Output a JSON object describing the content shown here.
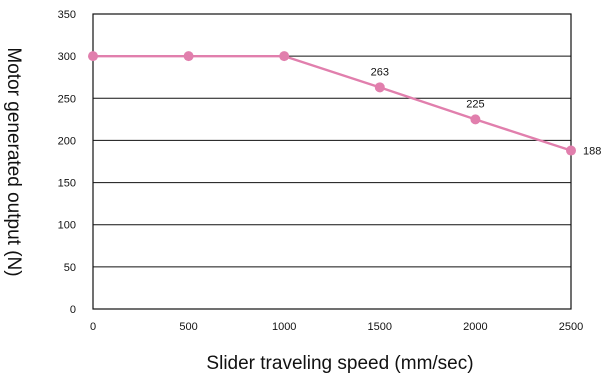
{
  "chart_data": {
    "type": "line",
    "title": "",
    "xlabel": "Slider traveling speed (mm/sec)",
    "ylabel": "Motor generated output (N)",
    "x": [
      0,
      500,
      1000,
      1500,
      2000,
      2500
    ],
    "series": [
      {
        "values": [
          300,
          300,
          300,
          263,
          225,
          188
        ],
        "data_labels": [
          "",
          "",
          "",
          "263",
          "225",
          "188"
        ],
        "color": "#e17fad"
      }
    ],
    "xlim": [
      0,
      2500
    ],
    "ylim": [
      0,
      350
    ],
    "xticks": [
      0,
      500,
      1000,
      1500,
      2000,
      2500
    ],
    "yticks": [
      0,
      50,
      100,
      150,
      200,
      250,
      300,
      350
    ],
    "xtick_labels": [
      "0",
      "500",
      "1000",
      "1500",
      "2000",
      "2500"
    ],
    "ytick_labels": [
      "0",
      "50",
      "100",
      "150",
      "200",
      "250",
      "300",
      "350"
    ],
    "grid": "horizontal",
    "legend": "none"
  }
}
